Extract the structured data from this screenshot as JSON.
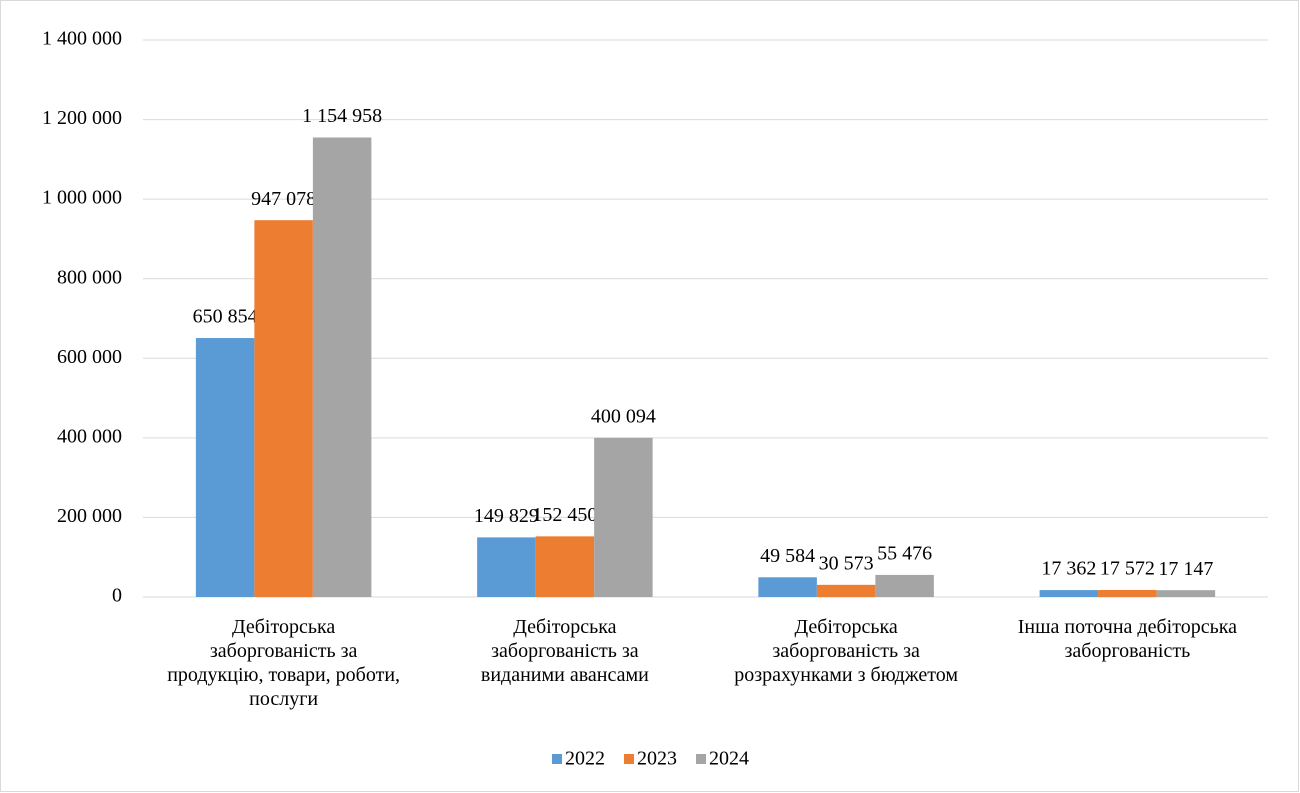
{
  "chart_data": {
    "type": "bar",
    "categories": [
      [
        "Дебіторська",
        "заборгованість за",
        "продукцію, товари, роботи,",
        "послуги"
      ],
      [
        "Дебіторська",
        "заборгованість за",
        "виданими авансами"
      ],
      [
        "Дебіторська",
        "заборгованість за",
        "розрахунками з бюджетом"
      ],
      [
        "Інша поточна дебіторська",
        "заборгованість"
      ]
    ],
    "series": [
      {
        "name": "2022",
        "color": "#5b9bd5",
        "values": [
          650854,
          149829,
          49584,
          17362
        ],
        "value_labels": [
          "650 854",
          "149 829",
          "49 584",
          "17 362"
        ]
      },
      {
        "name": "2023",
        "color": "#ed7d31",
        "values": [
          947078,
          152450,
          30573,
          17572
        ],
        "value_labels": [
          "947 078",
          "152 450",
          "30 573",
          "17 572"
        ]
      },
      {
        "name": "2024",
        "color": "#a5a5a5",
        "values": [
          1154958,
          400094,
          55476,
          17147
        ],
        "value_labels": [
          "1 154 958",
          "400 094",
          "55 476",
          "17 147"
        ]
      }
    ],
    "ylim": [
      0,
      1400000
    ],
    "yticks": [
      0,
      {
        "value": 200000,
        "label": "200 000"
      },
      {
        "value": 400000,
        "label": "400 000"
      },
      {
        "value": 600000,
        "label": "600 000"
      },
      {
        "value": 800000,
        "label": "800 000"
      },
      {
        "value": 1000000,
        "label": "1 000 000"
      },
      {
        "value": 1200000,
        "label": "1 200 000"
      },
      {
        "value": 1400000,
        "label": "1 400 000"
      }
    ],
    "grid": true,
    "legend": "bottom"
  }
}
